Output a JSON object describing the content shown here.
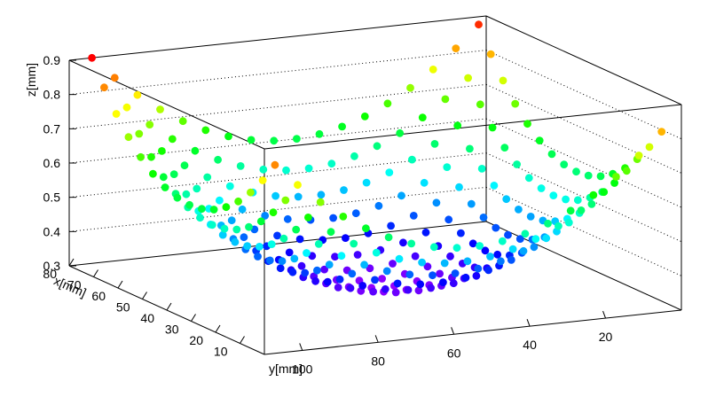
{
  "chart_data": {
    "type": "scatter",
    "title": "",
    "xlabel": "x[mm]",
    "ylabel": "y[mm]",
    "zlabel": "z[mm]",
    "xlim": [
      0,
      80
    ],
    "ylim": [
      0,
      110
    ],
    "zlim": [
      0.3,
      0.9
    ],
    "x_ticks": [
      10,
      20,
      30,
      40,
      50,
      60,
      70,
      80
    ],
    "x_tick_labels": [
      "10",
      "20",
      "30",
      "40",
      "50",
      "60",
      "70",
      "80"
    ],
    "y_ticks": [
      20,
      40,
      60,
      80,
      100
    ],
    "y_tick_labels": [
      "20",
      "40",
      "60",
      "80",
      "100"
    ],
    "z_ticks": [
      0.3,
      0.4,
      0.5,
      0.6,
      0.7,
      0.8,
      0.9
    ],
    "z_tick_labels": [
      "0.3",
      "0.4",
      "0.5",
      "0.6",
      "0.7",
      "0.8",
      "0.9"
    ],
    "grid": true,
    "colormap": "rainbow (color encodes z)",
    "grid_x_values": [
      5,
      10,
      15,
      20,
      25,
      30,
      35,
      40,
      45,
      50,
      55,
      60,
      65,
      70,
      75,
      80
    ],
    "grid_y_values": [
      2,
      8,
      14,
      20,
      26,
      32,
      38,
      44,
      50,
      56,
      62,
      68,
      74,
      80,
      86,
      92,
      98,
      104
    ],
    "surface": "z = 0.3 + 0.6 * ((a-0.5)^2 + (b-0.5)^2) / 0.5, with a = x/80, b = y/104 (saddle-free bowl, minimum near center)"
  }
}
